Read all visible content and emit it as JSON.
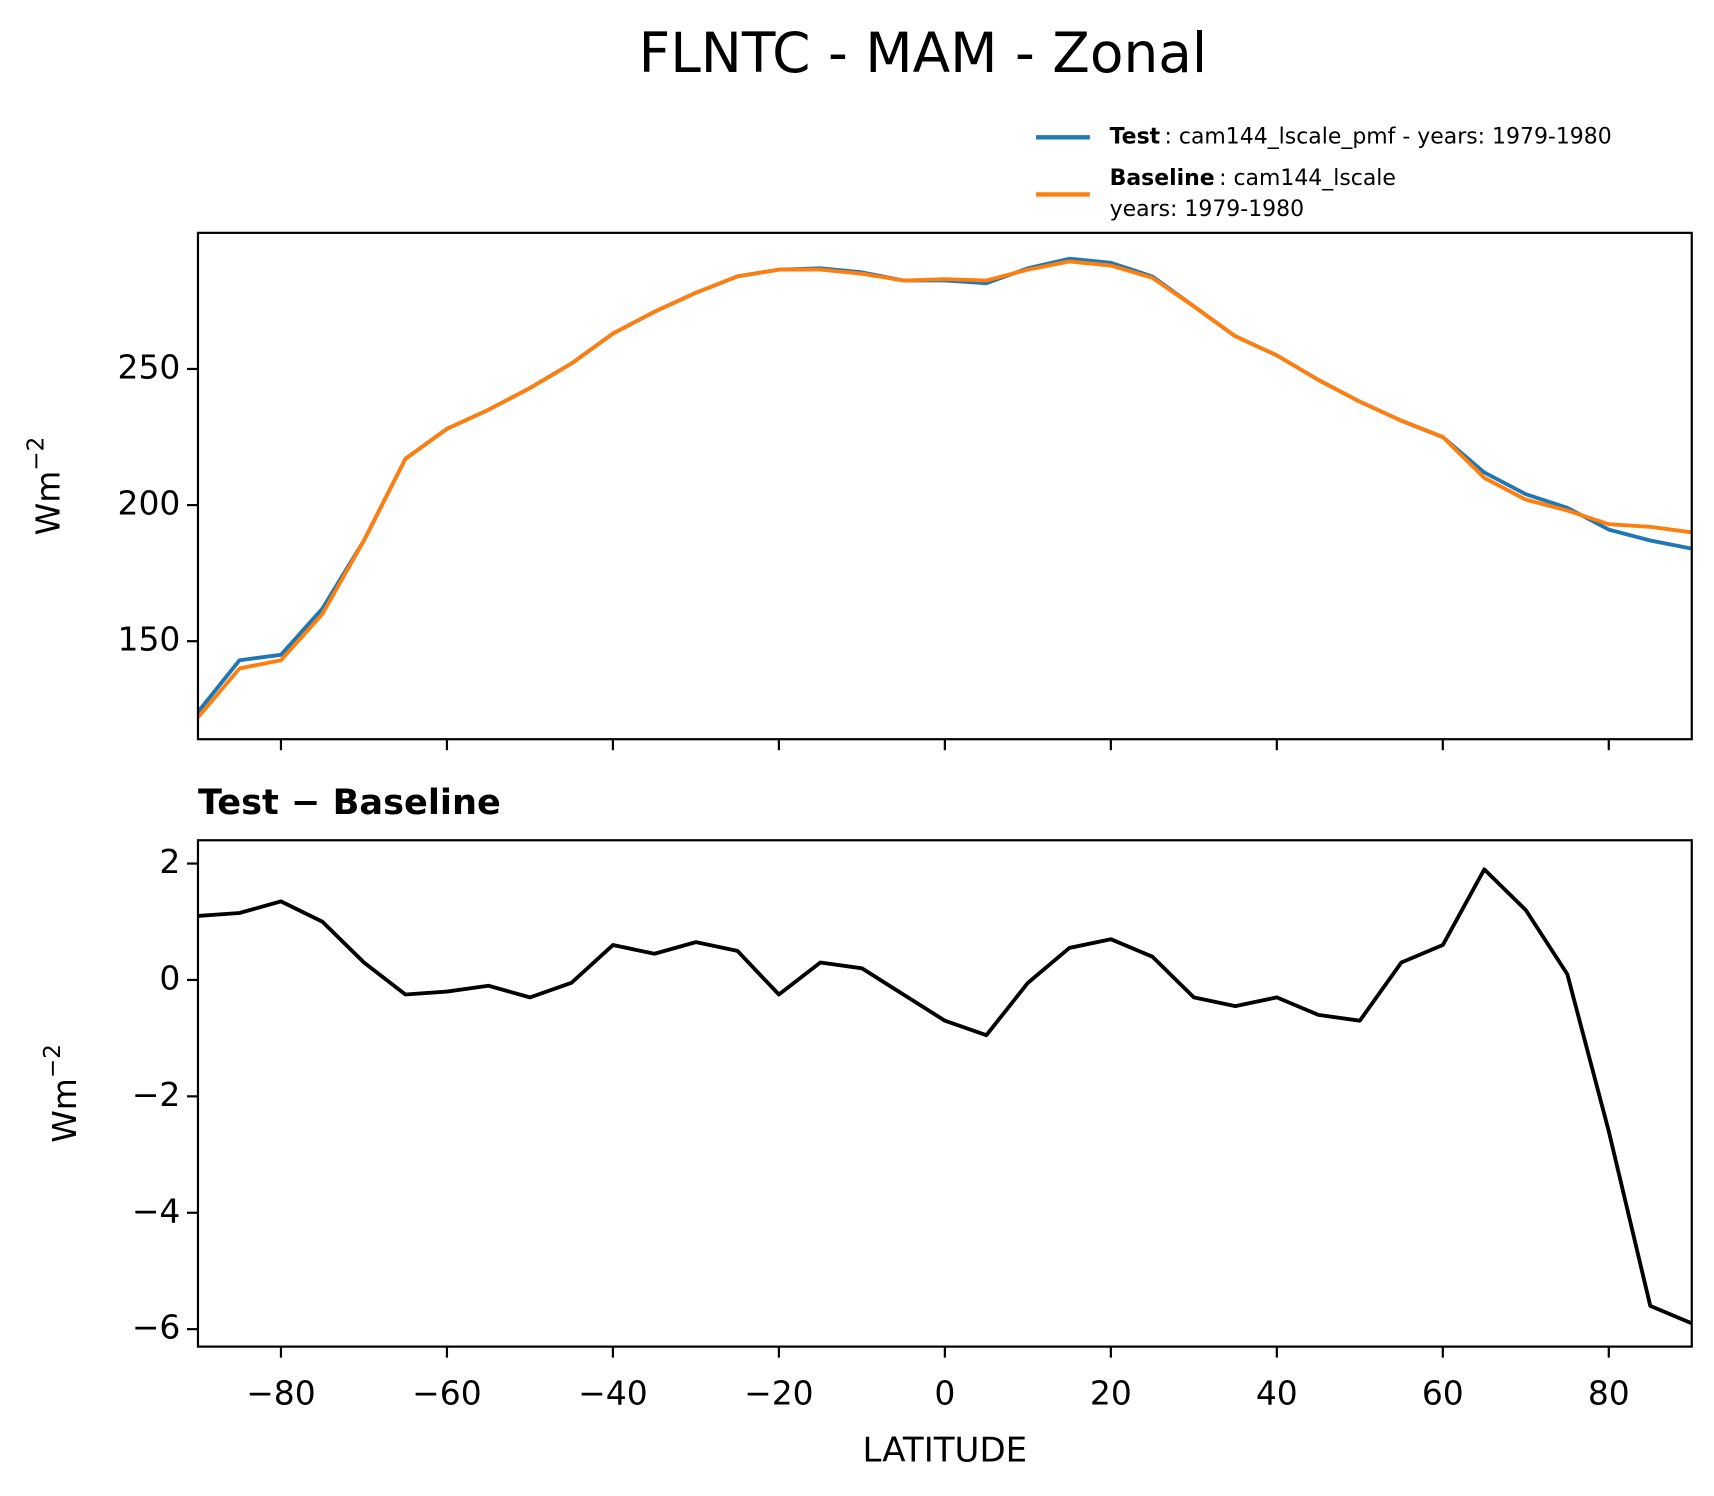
{
  "title": "FLNTC - MAM - Zonal",
  "chart_data": [
    {
      "type": "line",
      "x": [
        -90,
        -85,
        -80,
        -75,
        -70,
        -65,
        -60,
        -55,
        -50,
        -45,
        -40,
        -35,
        -30,
        -25,
        -20,
        -15,
        -10,
        -5,
        0,
        5,
        10,
        15,
        20,
        25,
        30,
        35,
        40,
        45,
        50,
        55,
        60,
        65,
        70,
        75,
        80,
        85,
        90
      ],
      "series": [
        {
          "name": "Test",
          "description": ": cam144_lscale_pmf - years: 1979-1980",
          "color": "#1f77b4",
          "values": [
            124,
            143,
            145,
            162,
            187,
            217,
            228,
            235,
            243,
            252,
            263,
            271,
            278,
            284,
            286.5,
            287,
            285.5,
            282.5,
            282.5,
            281.5,
            287,
            290.5,
            289,
            284,
            273,
            262,
            255,
            246,
            238,
            231,
            225,
            212,
            204,
            199,
            191,
            187,
            184
          ]
        },
        {
          "name": "Baseline",
          "description": [
            ": cam144_lscale",
            "years: 1979-1980"
          ],
          "color": "#ff7f0e",
          "values": [
            122,
            140,
            143,
            160,
            187,
            217,
            228,
            235,
            243,
            252,
            263,
            271,
            278,
            284,
            286.5,
            286.5,
            285,
            282.5,
            283,
            282.5,
            286.5,
            289.5,
            288,
            283.5,
            273,
            262,
            255,
            246,
            238,
            231,
            225,
            210,
            202,
            198,
            193,
            192,
            190
          ]
        }
      ],
      "xlim": [
        -90,
        90
      ],
      "xticks": [
        -80,
        -60,
        -40,
        -20,
        0,
        20,
        40,
        60,
        80
      ],
      "ylim": [
        114,
        300
      ],
      "yticks": [
        150,
        200,
        250
      ],
      "ylabel": {
        "base": "Wm",
        "sup": "−2"
      }
    },
    {
      "type": "line",
      "title": "Test − Baseline",
      "x": [
        -90,
        -85,
        -80,
        -75,
        -70,
        -65,
        -60,
        -55,
        -50,
        -45,
        -40,
        -35,
        -30,
        -25,
        -20,
        -15,
        -10,
        -5,
        0,
        5,
        10,
        15,
        20,
        25,
        30,
        35,
        40,
        45,
        50,
        55,
        60,
        65,
        70,
        75,
        80,
        85,
        90
      ],
      "series": [
        {
          "color": "#000000",
          "values": [
            1.1,
            1.15,
            1.35,
            1.0,
            0.3,
            -0.25,
            -0.2,
            -0.1,
            -0.3,
            -0.05,
            0.6,
            0.45,
            0.65,
            0.5,
            -0.25,
            0.3,
            0.2,
            -0.25,
            -0.7,
            -0.95,
            -0.05,
            0.55,
            0.7,
            0.4,
            -0.3,
            -0.45,
            -0.3,
            -0.6,
            -0.7,
            0.3,
            0.6,
            1.9,
            1.2,
            0.1,
            -2.6,
            -5.6,
            -5.9
          ]
        }
      ],
      "xlim": [
        -90,
        90
      ],
      "xticks": [
        {
          "value": -80,
          "label": "−80"
        },
        {
          "value": -60,
          "label": "−60"
        },
        {
          "value": -40,
          "label": "−40"
        },
        {
          "value": -20,
          "label": "−20"
        },
        0,
        20,
        40,
        60,
        80
      ],
      "ylim": [
        -6.3,
        2.4
      ],
      "yticks": [
        2,
        0,
        {
          "value": -2,
          "label": "−2"
        },
        {
          "value": -4,
          "label": "−4"
        },
        {
          "value": -6,
          "label": "−6"
        }
      ],
      "ylabel": {
        "base": "Wm",
        "sup": "−2"
      },
      "xlabel": "LATITUDE"
    }
  ]
}
